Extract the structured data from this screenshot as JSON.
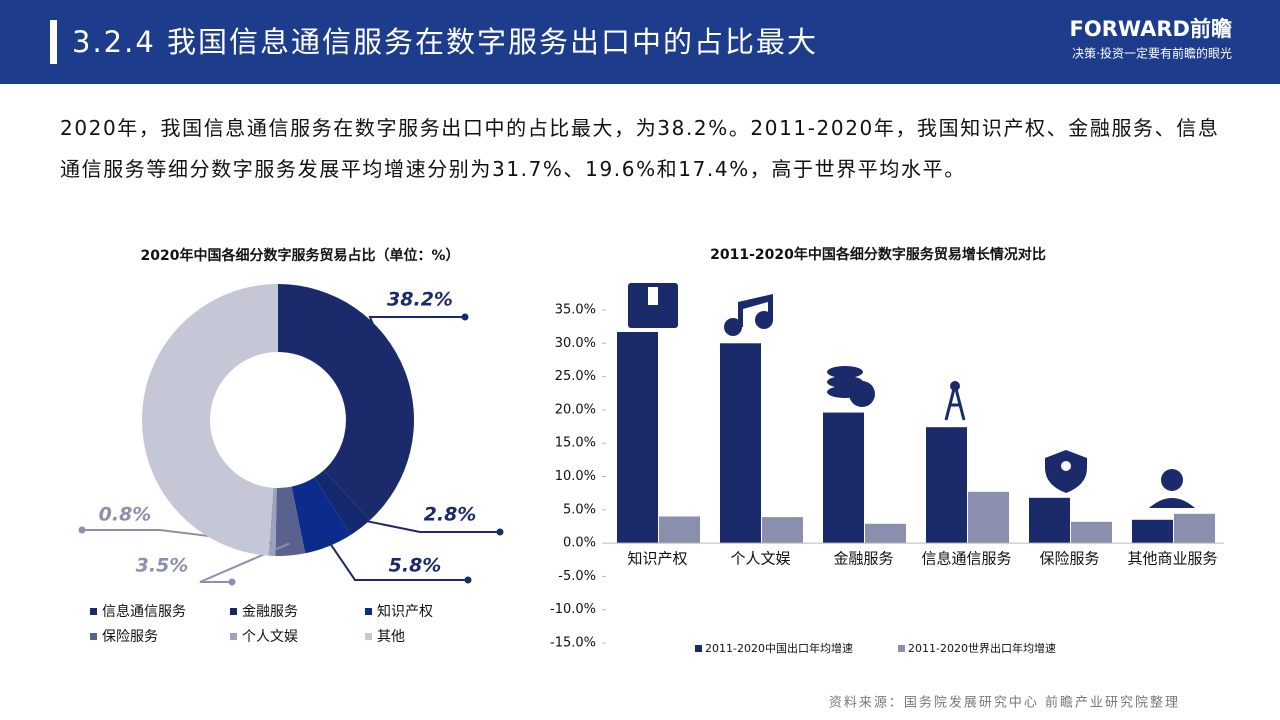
{
  "header": {
    "title": "3.2.4 我国信息通信服务在数字服务出口中的占比最大",
    "brand": "FORWARD前瞻",
    "slogan": "决策·投资一定要有前瞻的眼光"
  },
  "text": "2020年，我国信息通信服务在数字服务出口中的占比最大，为38.2%。2011-2020年，我国知识产权、金融服务、信息通信服务等细分数字服务发展平均增速分别为31.7%、19.6%和17.4%，高于世界平均水平。",
  "chart_data": [
    {
      "type": "pie",
      "title": "2020年中国各细分数字服务贸易占比（单位：%）",
      "categories": [
        "信息通信服务",
        "金融服务",
        "知识产权",
        "保险服务",
        "个人文娱",
        "其他"
      ],
      "values": [
        38.2,
        2.8,
        5.8,
        3.5,
        0.8,
        48.9
      ],
      "value_labels": [
        "38.2%",
        "2.8%",
        "5.8%",
        "3.5%",
        "0.8%",
        null
      ],
      "colors": [
        "#1b2a6b",
        "#13286f",
        "#0b2c8c",
        "#59618f",
        "#9da1bd",
        "#c5c7d6"
      ]
    },
    {
      "type": "bar",
      "title": "2011-2020年中国各细分数字服务贸易增长情况对比",
      "categories": [
        "知识产权",
        "个人文娱",
        "金融服务",
        "信息通信服务",
        "保险服务",
        "其他商业服务"
      ],
      "series": [
        {
          "name": "2011-2020中国出口年均增速",
          "color": "#1b2a6b",
          "values": [
            31.7,
            30.0,
            19.6,
            17.4,
            6.8,
            3.5
          ]
        },
        {
          "name": "2011-2020世界出口年均增速",
          "color": "#8b8fae",
          "values": [
            4.0,
            3.9,
            2.9,
            7.7,
            3.2,
            4.4
          ]
        }
      ],
      "ylim": [
        -15,
        35
      ],
      "yticks": [
        {
          "value": -15,
          "label": "-15.0%"
        },
        {
          "value": -10,
          "label": "-10.0%"
        },
        {
          "value": -5,
          "label": "-5.0%"
        },
        {
          "value": 0,
          "label": "0.0%"
        },
        {
          "value": 5,
          "label": "5.0%"
        },
        {
          "value": 10,
          "label": "10.0%"
        },
        {
          "value": 15,
          "label": "15.0%"
        },
        {
          "value": 20,
          "label": "20.0%"
        },
        {
          "value": 25,
          "label": "25.0%"
        },
        {
          "value": 30,
          "label": "30.0%"
        },
        {
          "value": 35,
          "label": "35.0%"
        }
      ]
    }
  ],
  "source": "资料来源：国务院发展研究中心 前瞻产业研究院整理"
}
